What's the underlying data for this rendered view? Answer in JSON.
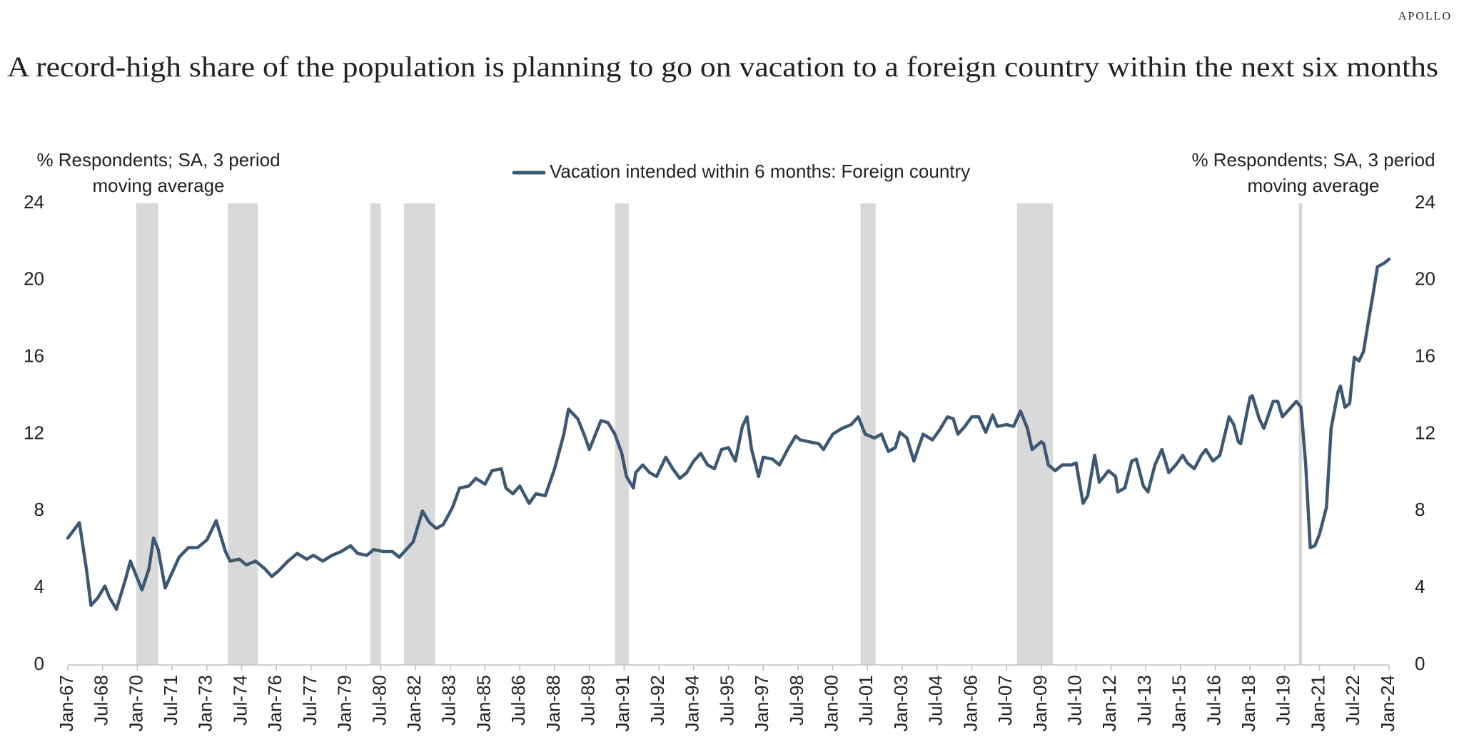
{
  "brand": "APOLLO",
  "chart_data": {
    "type": "line",
    "title": "A record-high share of the population is planning to go on vacation to a foreign country within the next six months",
    "y_label": "% Respondents; SA, 3 period moving average",
    "y2_label": "% Respondents; SA, 3 period moving average",
    "xlim": [
      1967,
      2024
    ],
    "xticks": [
      {
        "value": 1967,
        "label": "Jan-67"
      },
      {
        "value": 1968.5,
        "label": "Jul-68"
      },
      {
        "value": 1970,
        "label": "Jan-70"
      },
      {
        "value": 1971.5,
        "label": "Jul-71"
      },
      {
        "value": 1973,
        "label": "Jan-73"
      },
      {
        "value": 1974.5,
        "label": "Jul-74"
      },
      {
        "value": 1976,
        "label": "Jan-76"
      },
      {
        "value": 1977.5,
        "label": "Jul-77"
      },
      {
        "value": 1979,
        "label": "Jan-79"
      },
      {
        "value": 1980.5,
        "label": "Jul-80"
      },
      {
        "value": 1982,
        "label": "Jan-82"
      },
      {
        "value": 1983.5,
        "label": "Jul-83"
      },
      {
        "value": 1985,
        "label": "Jan-85"
      },
      {
        "value": 1986.5,
        "label": "Jul-86"
      },
      {
        "value": 1988,
        "label": "Jan-88"
      },
      {
        "value": 1989.5,
        "label": "Jul-89"
      },
      {
        "value": 1991,
        "label": "Jan-91"
      },
      {
        "value": 1992.5,
        "label": "Jul-92"
      },
      {
        "value": 1994,
        "label": "Jan-94"
      },
      {
        "value": 1995.5,
        "label": "Jul-95"
      },
      {
        "value": 1997,
        "label": "Jan-97"
      },
      {
        "value": 1998.5,
        "label": "Jul-98"
      },
      {
        "value": 2000,
        "label": "Jan-00"
      },
      {
        "value": 2001.5,
        "label": "Jul-01"
      },
      {
        "value": 2003,
        "label": "Jan-03"
      },
      {
        "value": 2004.5,
        "label": "Jul-04"
      },
      {
        "value": 2006,
        "label": "Jan-06"
      },
      {
        "value": 2007.5,
        "label": "Jul-07"
      },
      {
        "value": 2009,
        "label": "Jan-09"
      },
      {
        "value": 2010.5,
        "label": "Jul-10"
      },
      {
        "value": 2012,
        "label": "Jan-12"
      },
      {
        "value": 2013.5,
        "label": "Jul-13"
      },
      {
        "value": 2015,
        "label": "Jan-15"
      },
      {
        "value": 2016.5,
        "label": "Jul-16"
      },
      {
        "value": 2018,
        "label": "Jan-18"
      },
      {
        "value": 2019.5,
        "label": "Jul-19"
      },
      {
        "value": 2021,
        "label": "Jan-21"
      },
      {
        "value": 2022.5,
        "label": "Jul-22"
      },
      {
        "value": 2024,
        "label": "Jan-24"
      }
    ],
    "ylim": [
      0,
      24
    ],
    "yticks": [
      0,
      4,
      8,
      12,
      16,
      20,
      24
    ],
    "y2lim": [
      0,
      24
    ],
    "y2ticks": [
      0,
      4,
      8,
      12,
      16,
      20,
      24
    ],
    "grid": false,
    "shaded_ranges": [
      [
        1969.95,
        1970.9
      ],
      [
        1973.9,
        1975.2
      ],
      [
        1980.05,
        1980.5
      ],
      [
        1981.5,
        1982.85
      ],
      [
        1990.6,
        1991.2
      ],
      [
        2001.2,
        2001.85
      ],
      [
        2007.95,
        2009.5
      ],
      [
        2020.1,
        2020.25
      ]
    ],
    "shade_color": "#d9d9d9",
    "series": [
      {
        "name": "Vacation intended within 6 months: Foreign country",
        "color": "#3d5873",
        "x": [
          1967.0,
          1967.5,
          1967.8,
          1968.0,
          1968.3,
          1968.6,
          1968.8,
          1969.1,
          1969.5,
          1969.7,
          1970.0,
          1970.2,
          1970.5,
          1970.7,
          1970.9,
          1971.2,
          1971.5,
          1971.8,
          1972.2,
          1972.6,
          1973.0,
          1973.4,
          1973.8,
          1974.0,
          1974.4,
          1974.7,
          1975.1,
          1975.5,
          1975.8,
          1976.1,
          1976.5,
          1976.9,
          1977.3,
          1977.6,
          1978.0,
          1978.4,
          1978.8,
          1979.2,
          1979.5,
          1979.9,
          1980.2,
          1980.6,
          1981.0,
          1981.3,
          1981.6,
          1981.9,
          1982.3,
          1982.6,
          1982.9,
          1983.2,
          1983.6,
          1983.9,
          1984.3,
          1984.6,
          1985.0,
          1985.3,
          1985.7,
          1985.9,
          1986.2,
          1986.5,
          1986.9,
          1987.2,
          1987.6,
          1988.0,
          1988.4,
          1988.6,
          1989.0,
          1989.3,
          1989.5,
          1989.7,
          1990.0,
          1990.3,
          1990.6,
          1990.9,
          1991.1,
          1991.4,
          1991.5,
          1991.8,
          1992.1,
          1992.4,
          1992.8,
          1993.1,
          1993.4,
          1993.7,
          1994.0,
          1994.3,
          1994.6,
          1994.9,
          1995.2,
          1995.5,
          1995.8,
          1996.1,
          1996.3,
          1996.5,
          1996.8,
          1997.0,
          1997.4,
          1997.7,
          1998.1,
          1998.4,
          1998.6,
          1999.0,
          1999.4,
          1999.6,
          2000.0,
          2000.4,
          2000.8,
          2001.1,
          2001.4,
          2001.8,
          2002.1,
          2002.4,
          2002.7,
          2002.9,
          2003.2,
          2003.5,
          2003.9,
          2004.3,
          2004.6,
          2004.95,
          2005.2,
          2005.4,
          2005.7,
          2006.0,
          2006.3,
          2006.6,
          2006.9,
          2007.1,
          2007.5,
          2007.8,
          2008.1,
          2008.4,
          2008.6,
          2009.0,
          2009.1,
          2009.3,
          2009.6,
          2009.9,
          2010.3,
          2010.5,
          2010.8,
          2011.0,
          2011.3,
          2011.5,
          2011.9,
          2012.2,
          2012.3,
          2012.6,
          2012.9,
          2013.1,
          2013.4,
          2013.6,
          2013.9,
          2014.2,
          2014.5,
          2014.8,
          2015.1,
          2015.3,
          2015.6,
          2015.9,
          2016.1,
          2016.4,
          2016.7,
          2017.1,
          2017.3,
          2017.5,
          2017.6,
          2018.0,
          2018.1,
          2018.4,
          2018.6,
          2019.0,
          2019.2,
          2019.4,
          2019.7,
          2020.0,
          2020.2,
          2020.4,
          2020.6,
          2020.8,
          2021.0,
          2021.3,
          2021.5,
          2021.8,
          2021.9,
          2022.1,
          2022.3,
          2022.5,
          2022.7,
          2022.9,
          2023.1,
          2023.3,
          2023.5,
          2023.8,
          2024.0
        ],
        "values": [
          6.6,
          7.4,
          5.0,
          3.1,
          3.5,
          4.1,
          3.5,
          2.9,
          4.5,
          5.4,
          4.5,
          3.9,
          5.0,
          6.6,
          6.0,
          4.0,
          4.8,
          5.6,
          6.1,
          6.1,
          6.5,
          7.5,
          5.9,
          5.4,
          5.5,
          5.2,
          5.4,
          5.0,
          4.6,
          4.9,
          5.4,
          5.8,
          5.5,
          5.7,
          5.4,
          5.7,
          5.9,
          6.2,
          5.8,
          5.7,
          6.0,
          5.9,
          5.9,
          5.6,
          6.0,
          6.4,
          8.0,
          7.4,
          7.1,
          7.3,
          8.2,
          9.2,
          9.3,
          9.7,
          9.4,
          10.1,
          10.2,
          9.2,
          8.9,
          9.3,
          8.4,
          8.9,
          8.8,
          10.2,
          12.0,
          13.3,
          12.8,
          11.9,
          11.2,
          11.8,
          12.7,
          12.6,
          12.0,
          11.0,
          9.8,
          9.2,
          10.0,
          10.4,
          10.0,
          9.8,
          10.8,
          10.2,
          9.7,
          10.0,
          10.6,
          11.0,
          10.4,
          10.2,
          11.2,
          11.3,
          10.6,
          12.4,
          12.9,
          11.2,
          9.8,
          10.8,
          10.7,
          10.4,
          11.3,
          11.9,
          11.7,
          11.6,
          11.5,
          11.2,
          12.0,
          12.3,
          12.5,
          12.9,
          12.0,
          11.8,
          12.0,
          11.1,
          11.3,
          12.1,
          11.8,
          10.6,
          12.0,
          11.7,
          12.2,
          12.9,
          12.8,
          12.0,
          12.4,
          12.9,
          12.9,
          12.1,
          13.0,
          12.4,
          12.5,
          12.4,
          13.2,
          12.3,
          11.2,
          11.6,
          11.5,
          10.4,
          10.1,
          10.4,
          10.4,
          10.5,
          8.4,
          8.8,
          10.9,
          9.5,
          10.1,
          9.8,
          9.0,
          9.2,
          10.6,
          10.7,
          9.3,
          9.0,
          10.4,
          11.2,
          10.0,
          10.4,
          10.9,
          10.5,
          10.2,
          10.9,
          11.2,
          10.6,
          10.9,
          12.9,
          12.5,
          11.6,
          11.5,
          13.9,
          14.0,
          12.8,
          12.3,
          13.7,
          13.7,
          12.9,
          13.3,
          13.7,
          13.4,
          10.5,
          6.1,
          6.2,
          6.8,
          8.2,
          12.3,
          14.2,
          14.5,
          13.4,
          13.6,
          16.0,
          15.8,
          16.3,
          17.8,
          19.2,
          20.7,
          20.9,
          21.1
        ]
      }
    ]
  }
}
